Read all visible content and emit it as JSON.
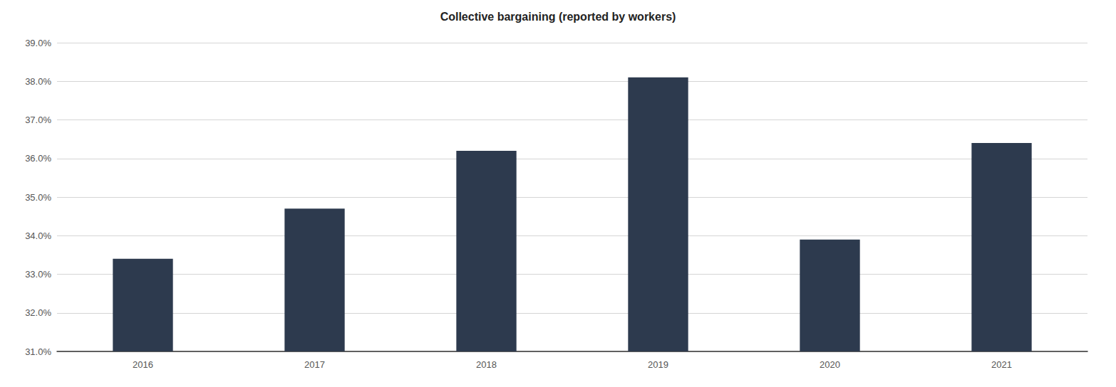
{
  "chart_data": {
    "type": "bar",
    "title": "Collective bargaining (reported by workers)",
    "categories": [
      "2016",
      "2017",
      "2018",
      "2019",
      "2020",
      "2021"
    ],
    "values": [
      33.4,
      34.7,
      36.2,
      38.1,
      33.9,
      36.4
    ],
    "color": "#2d3a4e",
    "ylim": [
      31.0,
      39.0
    ],
    "yticks": [
      {
        "value": 31.0,
        "label": "31.0%"
      },
      {
        "value": 32.0,
        "label": "32.0%"
      },
      {
        "value": 33.0,
        "label": "33.0%"
      },
      {
        "value": 34.0,
        "label": "34.0%"
      },
      {
        "value": 35.0,
        "label": "35.0%"
      },
      {
        "value": 36.0,
        "label": "36.0%"
      },
      {
        "value": 37.0,
        "label": "37.0%"
      },
      {
        "value": 38.0,
        "label": "38.0%"
      },
      {
        "value": 39.0,
        "label": "39.0%"
      }
    ],
    "grid": true
  }
}
